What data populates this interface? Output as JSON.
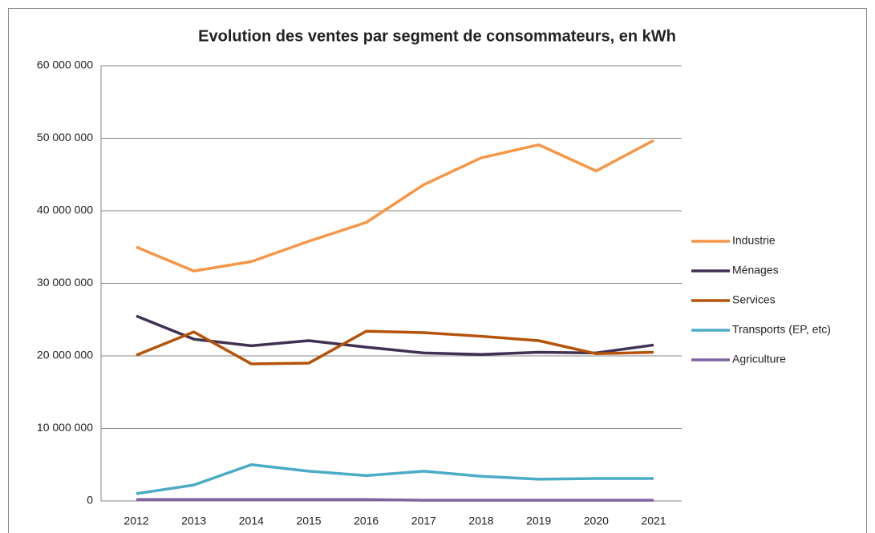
{
  "chart_data": {
    "type": "line",
    "title": "Evolution des ventes par segment de consommateurs, en kWh",
    "categories": [
      "2012",
      "2013",
      "2014",
      "2015",
      "2016",
      "2017",
      "2018",
      "2019",
      "2020",
      "2021"
    ],
    "series": [
      {
        "name": "Industrie",
        "color": "#f79646",
        "values": [
          35000000,
          31700000,
          33000000,
          35800000,
          38400000,
          43600000,
          47300000,
          49100000,
          45500000,
          49700000
        ]
      },
      {
        "name": "Ménages",
        "color": "#403152",
        "values": [
          25500000,
          22300000,
          21400000,
          22100000,
          21200000,
          20400000,
          20200000,
          20500000,
          20400000,
          21500000
        ]
      },
      {
        "name": "Services",
        "color": "#b45309",
        "values": [
          20100000,
          23300000,
          18900000,
          19000000,
          23400000,
          23200000,
          22700000,
          22100000,
          20300000,
          20500000
        ]
      },
      {
        "name": "Transports (EP, etc)",
        "color": "#4bacc6",
        "values": [
          1000000,
          2200000,
          5000000,
          4100000,
          3500000,
          4100000,
          3400000,
          3000000,
          3100000,
          3100000
        ]
      },
      {
        "name": "Agriculture",
        "color": "#8064a2",
        "values": [
          200000,
          200000,
          200000,
          200000,
          200000,
          100000,
          100000,
          100000,
          100000,
          100000
        ]
      }
    ],
    "ylim": [
      0,
      60000000
    ],
    "yticks": [
      0,
      {
        "value": 10000000,
        "label": "10 000 000"
      },
      {
        "value": 20000000,
        "label": "20 000 000"
      },
      {
        "value": 30000000,
        "label": "30 000 000"
      },
      {
        "value": 40000000,
        "label": "40 000 000"
      },
      {
        "value": 50000000,
        "label": "50 000 000"
      },
      {
        "value": 60000000,
        "label": "60 000 000"
      }
    ],
    "grid": true,
    "legend": "right"
  }
}
